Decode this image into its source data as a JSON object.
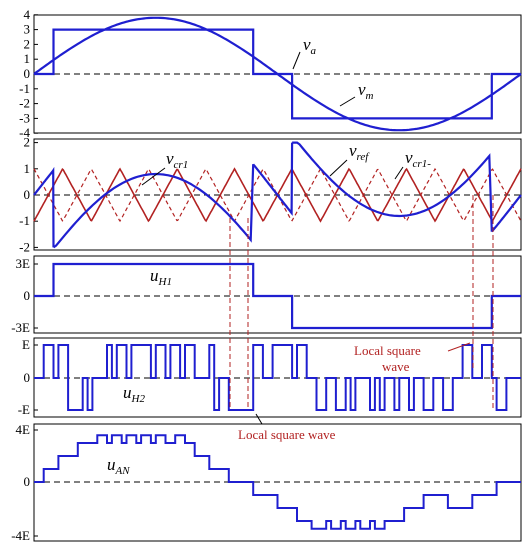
{
  "chart_data": [
    {
      "type": "line",
      "panel": "modulation",
      "yticks": [
        "4",
        "3",
        "2",
        "1",
        "0",
        "-1",
        "-2",
        "-3",
        "-4"
      ],
      "ylim": [
        -4,
        4
      ],
      "xlim": [
        0,
        1
      ],
      "series": [
        {
          "name": "v_a",
          "label": "v",
          "sub": "a",
          "kind": "sine",
          "amplitude": 3.8
        },
        {
          "name": "v_m",
          "label": "v",
          "sub": "m",
          "kind": "square_with_zero_gaps",
          "levels": [
            0,
            3,
            0,
            -3,
            0
          ],
          "switch_x": [
            0.04,
            0.45,
            0.53,
            0.94
          ]
        }
      ],
      "reference_line": {
        "y": 0,
        "style": "dashed"
      }
    },
    {
      "type": "line",
      "panel": "carriers",
      "yticks": [
        "2",
        "1",
        "0",
        "-1",
        "-2"
      ],
      "ylim": [
        -2,
        2
      ],
      "xlim": [
        0,
        1
      ],
      "series": [
        {
          "name": "v_ref",
          "label": "v",
          "sub": "ref",
          "color": "#1f1fd0"
        },
        {
          "name": "v_cr1",
          "label": "v",
          "sub": "cr1",
          "color": "#b22222",
          "kind": "triangle",
          "range": [
            -1,
            1
          ],
          "periods": 8.5
        },
        {
          "name": "v_cr1-",
          "label": "v",
          "sub": "cr1-",
          "color": "#b22222",
          "kind": "triangle_inverted_dashed",
          "range": [
            -1,
            1
          ],
          "periods": 8.5
        }
      ],
      "reference_line": {
        "y": 0,
        "style": "dashed"
      }
    },
    {
      "type": "line",
      "panel": "u_H1",
      "yticks": [
        "3E",
        "0",
        "-3E"
      ],
      "ylim": [
        -3,
        3
      ],
      "series": [
        {
          "name": "u_H1",
          "label": "u",
          "sub": "H1",
          "levels": [
            0,
            3,
            0,
            -3,
            0
          ],
          "switch_x": [
            0.04,
            0.45,
            0.53,
            0.94
          ]
        }
      ]
    },
    {
      "type": "line",
      "panel": "u_H2",
      "yticks": [
        "E",
        "0",
        "-E"
      ],
      "ylim": [
        -1,
        1
      ],
      "series": [
        {
          "name": "u_H2",
          "label": "u",
          "sub": "H2"
        }
      ],
      "annotations": [
        "Local square wave",
        "Local square wave"
      ]
    },
    {
      "type": "line",
      "panel": "u_AN",
      "yticks": [
        "4E",
        "0",
        "-4E"
      ],
      "ylim": [
        -4,
        4
      ],
      "series": [
        {
          "name": "u_AN",
          "label": "u",
          "sub": "AN"
        }
      ]
    }
  ],
  "annotation_text": {
    "local1": "Local square",
    "local1b": "wave",
    "local2": "Local square wave"
  },
  "labels": {
    "va": {
      "main": "v",
      "sub": "a"
    },
    "vm": {
      "main": "v",
      "sub": "m"
    },
    "vcr1": {
      "main": "v",
      "sub": "cr1"
    },
    "vref": {
      "main": "v",
      "sub": "ref"
    },
    "vcr1m": {
      "main": "v",
      "sub": "cr1-"
    },
    "uh1": {
      "main": "u",
      "sub": "H1"
    },
    "uh2": {
      "main": "u",
      "sub": "H2"
    },
    "uan": {
      "main": "u",
      "sub": "AN"
    }
  },
  "colors": {
    "blue": "#1f1fd0",
    "red": "#b22222",
    "axis": "#000000"
  }
}
